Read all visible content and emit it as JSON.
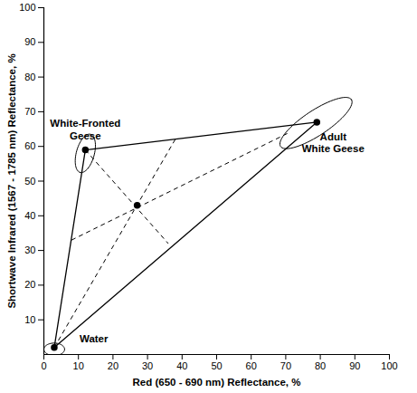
{
  "chart_data": {
    "type": "scatter",
    "xlabel": "Red (650 - 690 nm) Reflectance, %",
    "ylabel": "Shortwave Infrared (1567 - 1785 nm) Reflectance, %",
    "x": [
      3,
      12,
      79,
      27
    ],
    "values": [
      2,
      59,
      67,
      43
    ],
    "labels": [
      "Water",
      "White-Fronted\nGeese",
      "Adult\nWhite Geese",
      null
    ],
    "color": "#000000",
    "marker": "circle",
    "triangle": [
      0,
      1,
      2
    ],
    "dashed_lines": [
      {
        "x1": 3,
        "y1": 2,
        "x2": 38,
        "y2": 62
      },
      {
        "x1": 12,
        "y1": 59,
        "x2": 36,
        "y2": 32
      },
      {
        "x1": 8,
        "y1": 33,
        "x2": 71,
        "y2": 64
      }
    ],
    "ellipses": [
      {
        "x1": 0,
        "y1": 1.5,
        "x2": 6,
        "y2": 1.5,
        "minor": 1.8
      },
      {
        "x1": 13.5,
        "y1": 63.5,
        "x2": 10.5,
        "y2": 52.5,
        "minor": 2.6
      },
      {
        "x1": 68.5,
        "y1": 60,
        "x2": 89,
        "y2": 73.5,
        "minor": 3.6
      }
    ],
    "xlim": [
      0,
      100
    ],
    "ylim": [
      0,
      100
    ],
    "xticks": [
      0,
      10,
      20,
      30,
      40,
      50,
      60,
      70,
      80,
      90,
      100
    ],
    "yticks": [
      10,
      20,
      30,
      40,
      50,
      60,
      70,
      80,
      90,
      100
    ],
    "grid": false
  }
}
